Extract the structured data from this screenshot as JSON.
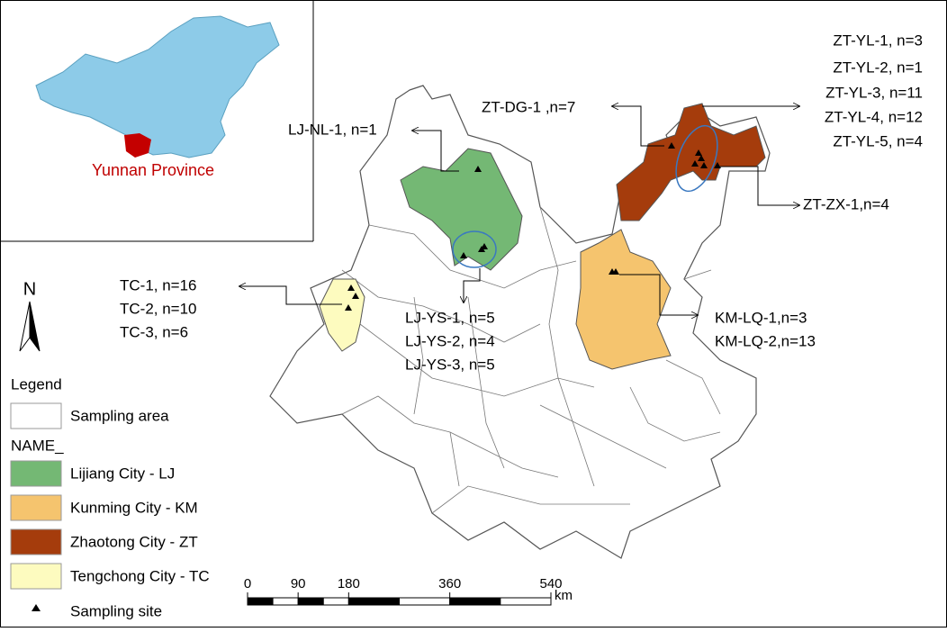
{
  "inset": {
    "label": "Yunnan Province"
  },
  "north_arrow": {
    "label": "N"
  },
  "annotations": {
    "zt_yl": [
      "ZT-YL-1, n=3",
      "ZT-YL-2, n=1",
      "ZT-YL-3, n=11",
      "ZT-YL-4, n=12",
      "ZT-YL-5, n=4"
    ],
    "zt_dg": "ZT-DG-1 ,n=7",
    "lj_nl": "LJ-NL-1, n=1",
    "zt_zx": "ZT-ZX-1,n=4",
    "tc": [
      "TC-1, n=16",
      "TC-2, n=10",
      "TC-3, n=6"
    ],
    "lj_ys": [
      "LJ-YS-1, n=5",
      "LJ-YS-2, n=4",
      "LJ-YS-3, n=5"
    ],
    "km_lq": [
      "KM-LQ-1,n=3",
      "KM-LQ-2,n=13"
    ]
  },
  "legend": {
    "title": "Legend",
    "sampling_area": "Sampling area",
    "field": "NAME_",
    "items": [
      {
        "label": "Lijiang City - LJ",
        "color": "#74b874"
      },
      {
        "label": "Kunming City - KM",
        "color": "#f5c46e"
      },
      {
        "label": "Zhaotong City - ZT",
        "color": "#a53c0c"
      },
      {
        "label": "Tengchong City - TC",
        "color": "#fdfbbf"
      }
    ],
    "sampling_site": "Sampling site"
  },
  "scale_bar": {
    "ticks": [
      0,
      90,
      180,
      360,
      540
    ],
    "unit": "km"
  }
}
